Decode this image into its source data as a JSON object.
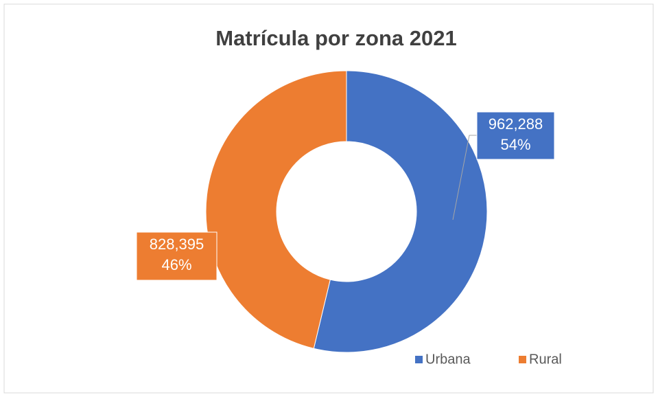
{
  "chart_data": {
    "type": "donut",
    "title": "Matrícula por zona 2021",
    "categories": [
      "Urbana",
      "Rural"
    ],
    "values": [
      962288,
      828395
    ],
    "value_labels": [
      "962,288",
      "828,395"
    ],
    "percent_labels": [
      "54%",
      "46%"
    ],
    "colors": [
      "#4472c4",
      "#ed7d31"
    ],
    "legend": "bottom-right"
  }
}
